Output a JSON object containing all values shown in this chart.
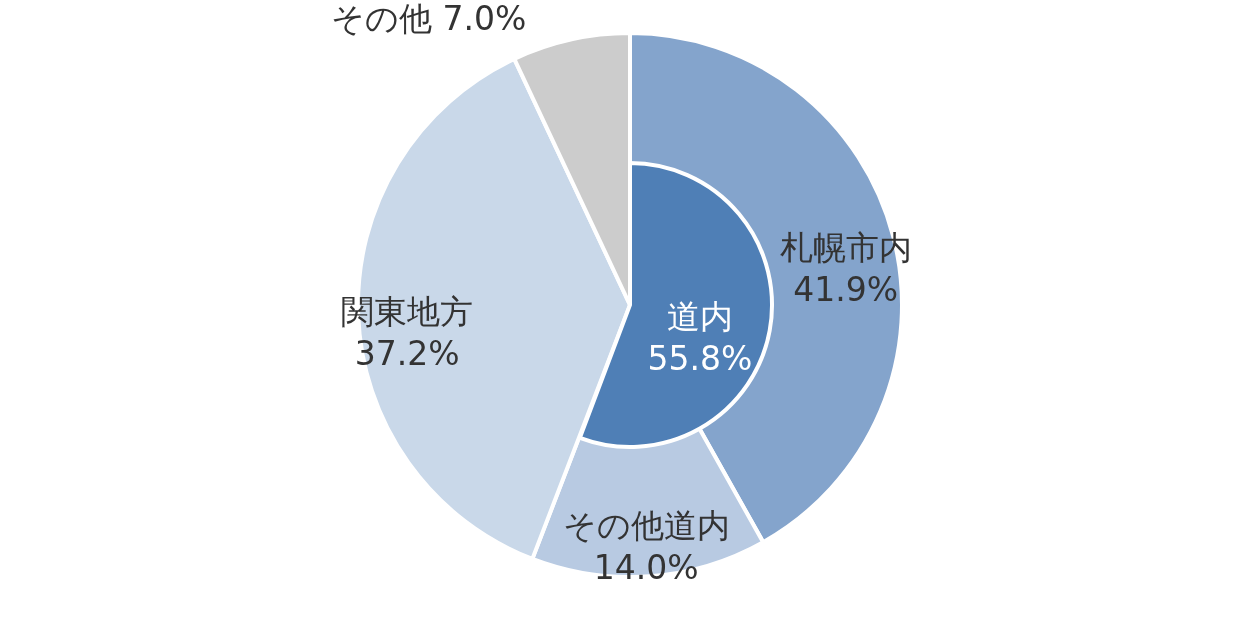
{
  "chart_data": [
    {
      "type": "pie",
      "data_labels": true,
      "categories": [
        "札幌市内",
        "その他道内",
        "関東地方",
        "その他"
      ],
      "values": [
        41.9,
        14.0,
        37.2,
        7.0
      ],
      "value_labels": [
        "41.9%",
        "14.0%",
        "37.2%",
        "7.0%"
      ],
      "colors": [
        "#84a4cc",
        "#b8cae2",
        "#c9d8e9",
        "#cccccc"
      ]
    },
    {
      "type": "other",
      "data_labels": true,
      "categories": [
        "道内"
      ],
      "values": [
        55.8
      ],
      "value_labels": [
        "55.8%"
      ],
      "colors": [
        "#4f7fb6"
      ]
    }
  ]
}
